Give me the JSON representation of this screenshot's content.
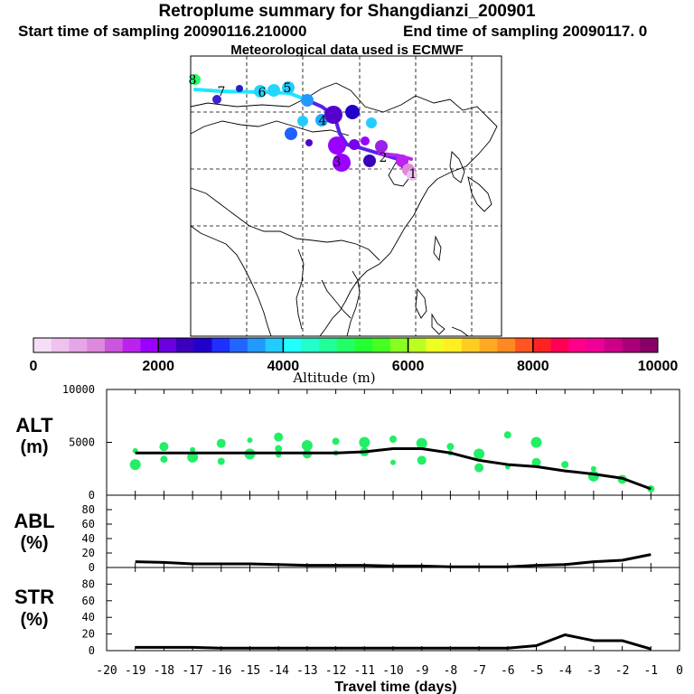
{
  "header": {
    "title": "Retroplume summary for Shangdianzi_200901",
    "start_label": "Start time of sampling 20090116.210000",
    "end_label": "End time of sampling 20090117.    0",
    "met_label": "Meteorological data used is ECMWF"
  },
  "colorbar": {
    "title": "Altitude (m)",
    "ticks": [
      "0",
      "2000",
      "4000",
      "6000",
      "8000",
      "10000"
    ],
    "colors": [
      "#f6ddf6",
      "#eec1ee",
      "#e6a5e6",
      "#dd88dd",
      "#cc55dd",
      "#bb22ee",
      "#9900ff",
      "#6a00dd",
      "#3a00bb",
      "#2200cc",
      "#1f2fff",
      "#2266ff",
      "#2299ff",
      "#22ccff",
      "#22ffff",
      "#22ffcc",
      "#22ff99",
      "#22ff66",
      "#22ff33",
      "#44ff22",
      "#88ff22",
      "#bbff22",
      "#eeff22",
      "#ffee22",
      "#ffcc22",
      "#ffaa22",
      "#ff8822",
      "#ff5522",
      "#ff2222",
      "#ff0055",
      "#ff0088",
      "#ee0099",
      "#cc0088",
      "#aa0077",
      "#880066"
    ]
  },
  "map": {
    "trajectory_labels": [
      "8",
      "7",
      "6",
      "5",
      "4",
      "3",
      "2",
      "1"
    ]
  },
  "panels": {
    "alt": {
      "label_top": "ALT",
      "label_bottom": "(m)",
      "yticks": [
        "10000",
        "5000",
        "0"
      ],
      "ymax": 10000
    },
    "abl": {
      "label_top": "ABL",
      "label_bottom": "(%)",
      "yticks": [
        "80",
        "60",
        "40",
        "20",
        "0"
      ],
      "ymax": 100
    },
    "str": {
      "label_top": "STR",
      "label_bottom": "(%)",
      "yticks": [
        "80",
        "60",
        "40",
        "20",
        "0"
      ],
      "ymax": 100
    }
  },
  "chart_data": {
    "type": "line",
    "title": "Retroplume summary for Shangdianzi_200901",
    "xlabel": "Travel time (days)",
    "xlim": [
      -20,
      0
    ],
    "x_tick_labels": [
      "-20",
      "-19",
      "-18",
      "-17",
      "-16",
      "-15",
      "-14",
      "-13",
      "-12",
      "-11",
      "-10",
      "-9",
      "-8",
      "-7",
      "-6",
      "-5",
      "-4",
      "-3",
      "-2",
      "-1",
      "0"
    ],
    "series": [
      {
        "name": "ALT mean (m)",
        "x": [
          -19,
          -18,
          -17,
          -16,
          -15,
          -14,
          -13,
          -12,
          -11,
          -10,
          -9,
          -8,
          -7,
          -6,
          -5,
          -4,
          -3,
          -2,
          -1
        ],
        "values": [
          4000,
          4000,
          4000,
          4000,
          4000,
          4000,
          4000,
          4000,
          4100,
          4400,
          4400,
          4000,
          3300,
          2900,
          2700,
          2300,
          2000,
          1600,
          600
        ]
      },
      {
        "name": "ABL (%)",
        "x": [
          -19,
          -18,
          -17,
          -16,
          -15,
          -14,
          -13,
          -12,
          -11,
          -10,
          -9,
          -8,
          -7,
          -6,
          -5,
          -4,
          -3,
          -2,
          -1
        ],
        "values": [
          8,
          7,
          5,
          5,
          5,
          4,
          3,
          3,
          3,
          2,
          2,
          1,
          1,
          1,
          3,
          4,
          8,
          10,
          18
        ]
      },
      {
        "name": "STR (%)",
        "x": [
          -19,
          -18,
          -17,
          -16,
          -15,
          -14,
          -13,
          -12,
          -11,
          -10,
          -9,
          -8,
          -7,
          -6,
          -5,
          -4,
          -3,
          -2,
          -1
        ],
        "values": [
          4,
          4,
          4,
          3,
          3,
          3,
          3,
          3,
          3,
          3,
          3,
          3,
          3,
          3,
          6,
          19,
          12,
          12,
          2
        ]
      },
      {
        "name": "ALT clusters (m)",
        "x": [
          -19,
          -19,
          -18,
          -18,
          -17,
          -17,
          -16,
          -16,
          -15,
          -15,
          -14,
          -14,
          -14,
          -13,
          -13,
          -12,
          -12,
          -11,
          -11,
          -10,
          -10,
          -9,
          -9,
          -8,
          -8,
          -7,
          -7,
          -6,
          -6,
          -5,
          -5,
          -4,
          -3,
          -3,
          -2,
          -1
        ],
        "values": [
          4200,
          2900,
          4600,
          3400,
          4300,
          3600,
          4900,
          3200,
          5200,
          3900,
          5500,
          4400,
          3800,
          4700,
          3900,
          5100,
          4000,
          5000,
          4100,
          5300,
          3100,
          4900,
          3300,
          4600,
          4000,
          3900,
          2600,
          5700,
          2700,
          5000,
          3100,
          2900,
          2500,
          1800,
          1500,
          600
        ]
      }
    ]
  }
}
